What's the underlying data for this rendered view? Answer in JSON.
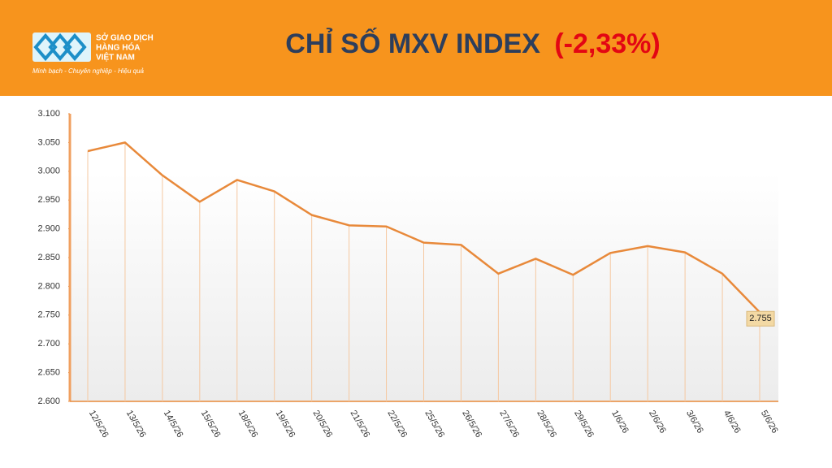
{
  "header": {
    "logo_lines": [
      "SỞ GIAO DỊCH",
      "HÀNG HÓA",
      "VIỆT NAM"
    ],
    "tagline": "Minh bạch - Chuyên nghiệp - Hiệu quả"
  },
  "chart_data": {
    "type": "line",
    "title": "CHỈ SỐ MXV INDEX",
    "title_change": "(-2,33%)",
    "categories": [
      "12/5/26",
      "13/5/26",
      "14/5/26",
      "15/5/26",
      "18/5/26",
      "19/5/26",
      "20/5/26",
      "21/5/26",
      "22/5/26",
      "25/5/26",
      "26/5/26",
      "27/5/26",
      "28/5/26",
      "29/5/26",
      "1/6/26",
      "2/6/26",
      "3/6/26",
      "4/6/26",
      "5/6/26"
    ],
    "values": [
      3035,
      3050,
      2993,
      2947,
      2985,
      2965,
      2924,
      2906,
      2904,
      2876,
      2872,
      2822,
      2848,
      2820,
      2858,
      2870,
      2859,
      2822,
      2755
    ],
    "value_labels": [
      null,
      null,
      null,
      null,
      null,
      null,
      null,
      null,
      null,
      null,
      null,
      null,
      null,
      null,
      null,
      null,
      null,
      null,
      "2.755"
    ],
    "color": "#e8893a",
    "ylim": [
      2600,
      3100
    ],
    "yticks": [
      {
        "value": 2600,
        "label": "2.600"
      },
      {
        "value": 2650,
        "label": "2.650"
      },
      {
        "value": 2700,
        "label": "2.700"
      },
      {
        "value": 2750,
        "label": "2.750"
      },
      {
        "value": 2800,
        "label": "2.800"
      },
      {
        "value": 2850,
        "label": "2.850"
      },
      {
        "value": 2900,
        "label": "2.900"
      },
      {
        "value": 2950,
        "label": "2.950"
      },
      {
        "value": 3000,
        "label": "3.000"
      },
      {
        "value": 3050,
        "label": "3.050"
      },
      {
        "value": 3100,
        "label": "3.100"
      }
    ]
  }
}
